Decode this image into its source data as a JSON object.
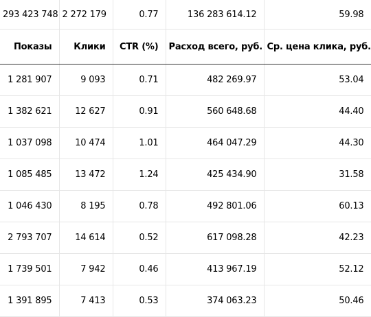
{
  "totals": [
    "293 423 748",
    "2 272 179",
    "0.77",
    "136 283 614.12",
    "59.98"
  ],
  "headers": [
    "Показы",
    "Клики",
    "CTR (%)",
    "Расход всего, руб.",
    "Ср. цена клика, руб."
  ],
  "rows": [
    [
      "1 281 907",
      "9 093",
      "0.71",
      "482 269.97",
      "53.04"
    ],
    [
      "1 382 621",
      "12 627",
      "0.91",
      "560 648.68",
      "44.40"
    ],
    [
      "1 037 098",
      "10 474",
      "1.01",
      "464 047.29",
      "44.30"
    ],
    [
      "1 085 485",
      "13 472",
      "1.24",
      "425 434.90",
      "31.58"
    ],
    [
      "1 046 430",
      "8 195",
      "0.78",
      "492 801.06",
      "60.13"
    ],
    [
      "2 793 707",
      "14 614",
      "0.52",
      "617 098.28",
      "42.23"
    ],
    [
      "1 739 501",
      "7 942",
      "0.46",
      "413 967.19",
      "52.12"
    ],
    [
      "1 391 895",
      "7 413",
      "0.53",
      "374 063.23",
      "50.46"
    ]
  ]
}
